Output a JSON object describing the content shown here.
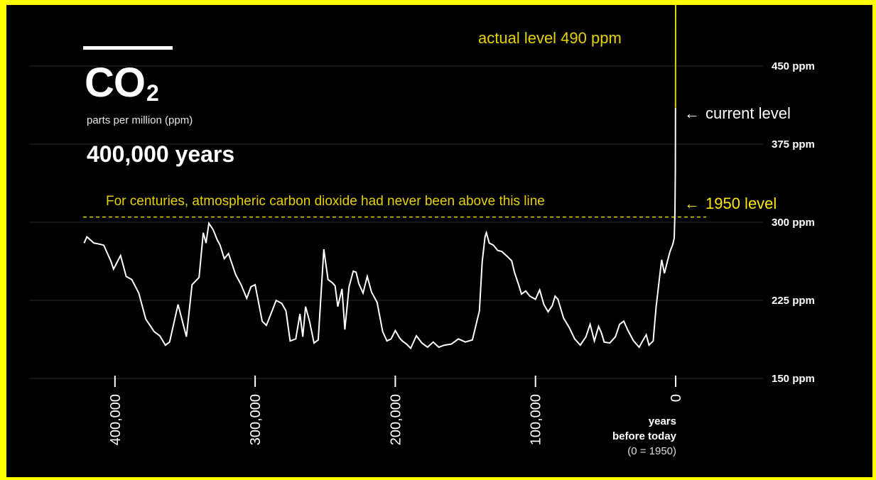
{
  "header": {
    "title": "CO",
    "title_sub": "2",
    "subtitle": "parts per million (ppm)",
    "years_span": "400,000 years"
  },
  "annotations": {
    "actual_level": "actual level 490 ppm",
    "current_level": "current level",
    "level_1950": "1950 level",
    "never_above": "For centuries, atmospheric carbon dioxide had never been above this line",
    "arrow": "←"
  },
  "x_axis_label": {
    "line1": "years",
    "line2": "before today",
    "line3": "(0 = 1950)"
  },
  "colors": {
    "background": "#000000",
    "frame": "#ffff00",
    "line": "#ffffff",
    "accent": "#e6d100",
    "grid": "#2a2a2a"
  },
  "chart_data": {
    "type": "line",
    "xlabel": "years before today (0 = 1950)",
    "ylabel": "parts per million (ppm)",
    "xlim": [
      425000,
      -20000
    ],
    "ylim": [
      150,
      450
    ],
    "x_ticks": [
      400000,
      300000,
      200000,
      100000,
      0
    ],
    "x_tick_labels": [
      "400,000",
      "300,000",
      "200,000",
      "100,000",
      "0"
    ],
    "y_ticks": [
      150,
      225,
      300,
      375,
      450
    ],
    "y_tick_labels": [
      "150 ppm",
      "225 ppm",
      "300 ppm",
      "375 ppm",
      "450 ppm"
    ],
    "reference_line": 305,
    "grid": true,
    "series": [
      {
        "values_x": [
          422000,
          420000,
          415000,
          411000,
          408000,
          403000,
          401000,
          396000,
          392000,
          388000,
          383000,
          378000,
          372000,
          368000,
          364000,
          361000,
          355000,
          349000,
          345000,
          340000,
          337000,
          335000,
          333000,
          330000,
          327000,
          325000,
          322000,
          319000,
          314000,
          310000,
          306000,
          303000,
          300000,
          295000,
          292000,
          289000,
          285000,
          281000,
          278000,
          275000,
          271000,
          268000,
          266000,
          264000,
          261000,
          258000,
          255000,
          251000,
          248000,
          245000,
          243000,
          241000,
          238000,
          236000,
          233000,
          230000,
          228000,
          226000,
          223000,
          220000,
          217000,
          213000,
          209000,
          206000,
          203000,
          200000,
          197000,
          195000,
          192000,
          189000,
          185000,
          181000,
          177000,
          173000,
          169000,
          165000,
          160000,
          155000,
          150000,
          145000,
          140000,
          138000,
          136000,
          135000,
          133000,
          130000,
          127000,
          124000,
          120000,
          117000,
          115000,
          112000,
          110000,
          107000,
          104000,
          100000,
          97000,
          94000,
          91000,
          88000,
          86000,
          84000,
          80000,
          76000,
          72000,
          68000,
          64000,
          61000,
          58000,
          55000,
          53000,
          51000,
          47000,
          43000,
          40000,
          37000,
          34000,
          30000,
          26000,
          24000,
          21000,
          19000,
          16000,
          14000,
          12000,
          10000,
          8000,
          6000,
          4000,
          2000,
          1000,
          500,
          200,
          100,
          0
        ],
        "values_y": [
          280,
          286,
          280,
          279,
          278,
          263,
          255,
          268,
          248,
          245,
          232,
          207,
          195,
          191,
          182,
          185,
          221,
          190,
          240,
          247,
          290,
          280,
          299,
          293,
          283,
          278,
          265,
          270,
          250,
          240,
          227,
          238,
          240,
          205,
          201,
          211,
          225,
          222,
          215,
          186,
          188,
          212,
          190,
          219,
          204,
          184,
          187,
          274,
          245,
          242,
          239,
          219,
          236,
          197,
          238,
          253,
          252,
          241,
          232,
          248,
          233,
          223,
          195,
          186,
          188,
          196,
          189,
          186,
          183,
          179,
          191,
          184,
          180,
          185,
          180,
          182,
          183,
          188,
          185,
          187,
          215,
          262,
          286,
          290,
          280,
          278,
          273,
          272,
          267,
          263,
          252,
          240,
          231,
          234,
          229,
          226,
          235,
          221,
          214,
          220,
          229,
          226,
          208,
          199,
          188,
          182,
          190,
          202,
          186,
          200,
          194,
          185,
          184,
          190,
          202,
          205,
          196,
          186,
          180,
          185,
          192,
          182,
          186,
          218,
          241,
          264,
          251,
          262,
          272,
          279,
          285,
          310,
          350,
          410,
          490
        ]
      }
    ]
  }
}
